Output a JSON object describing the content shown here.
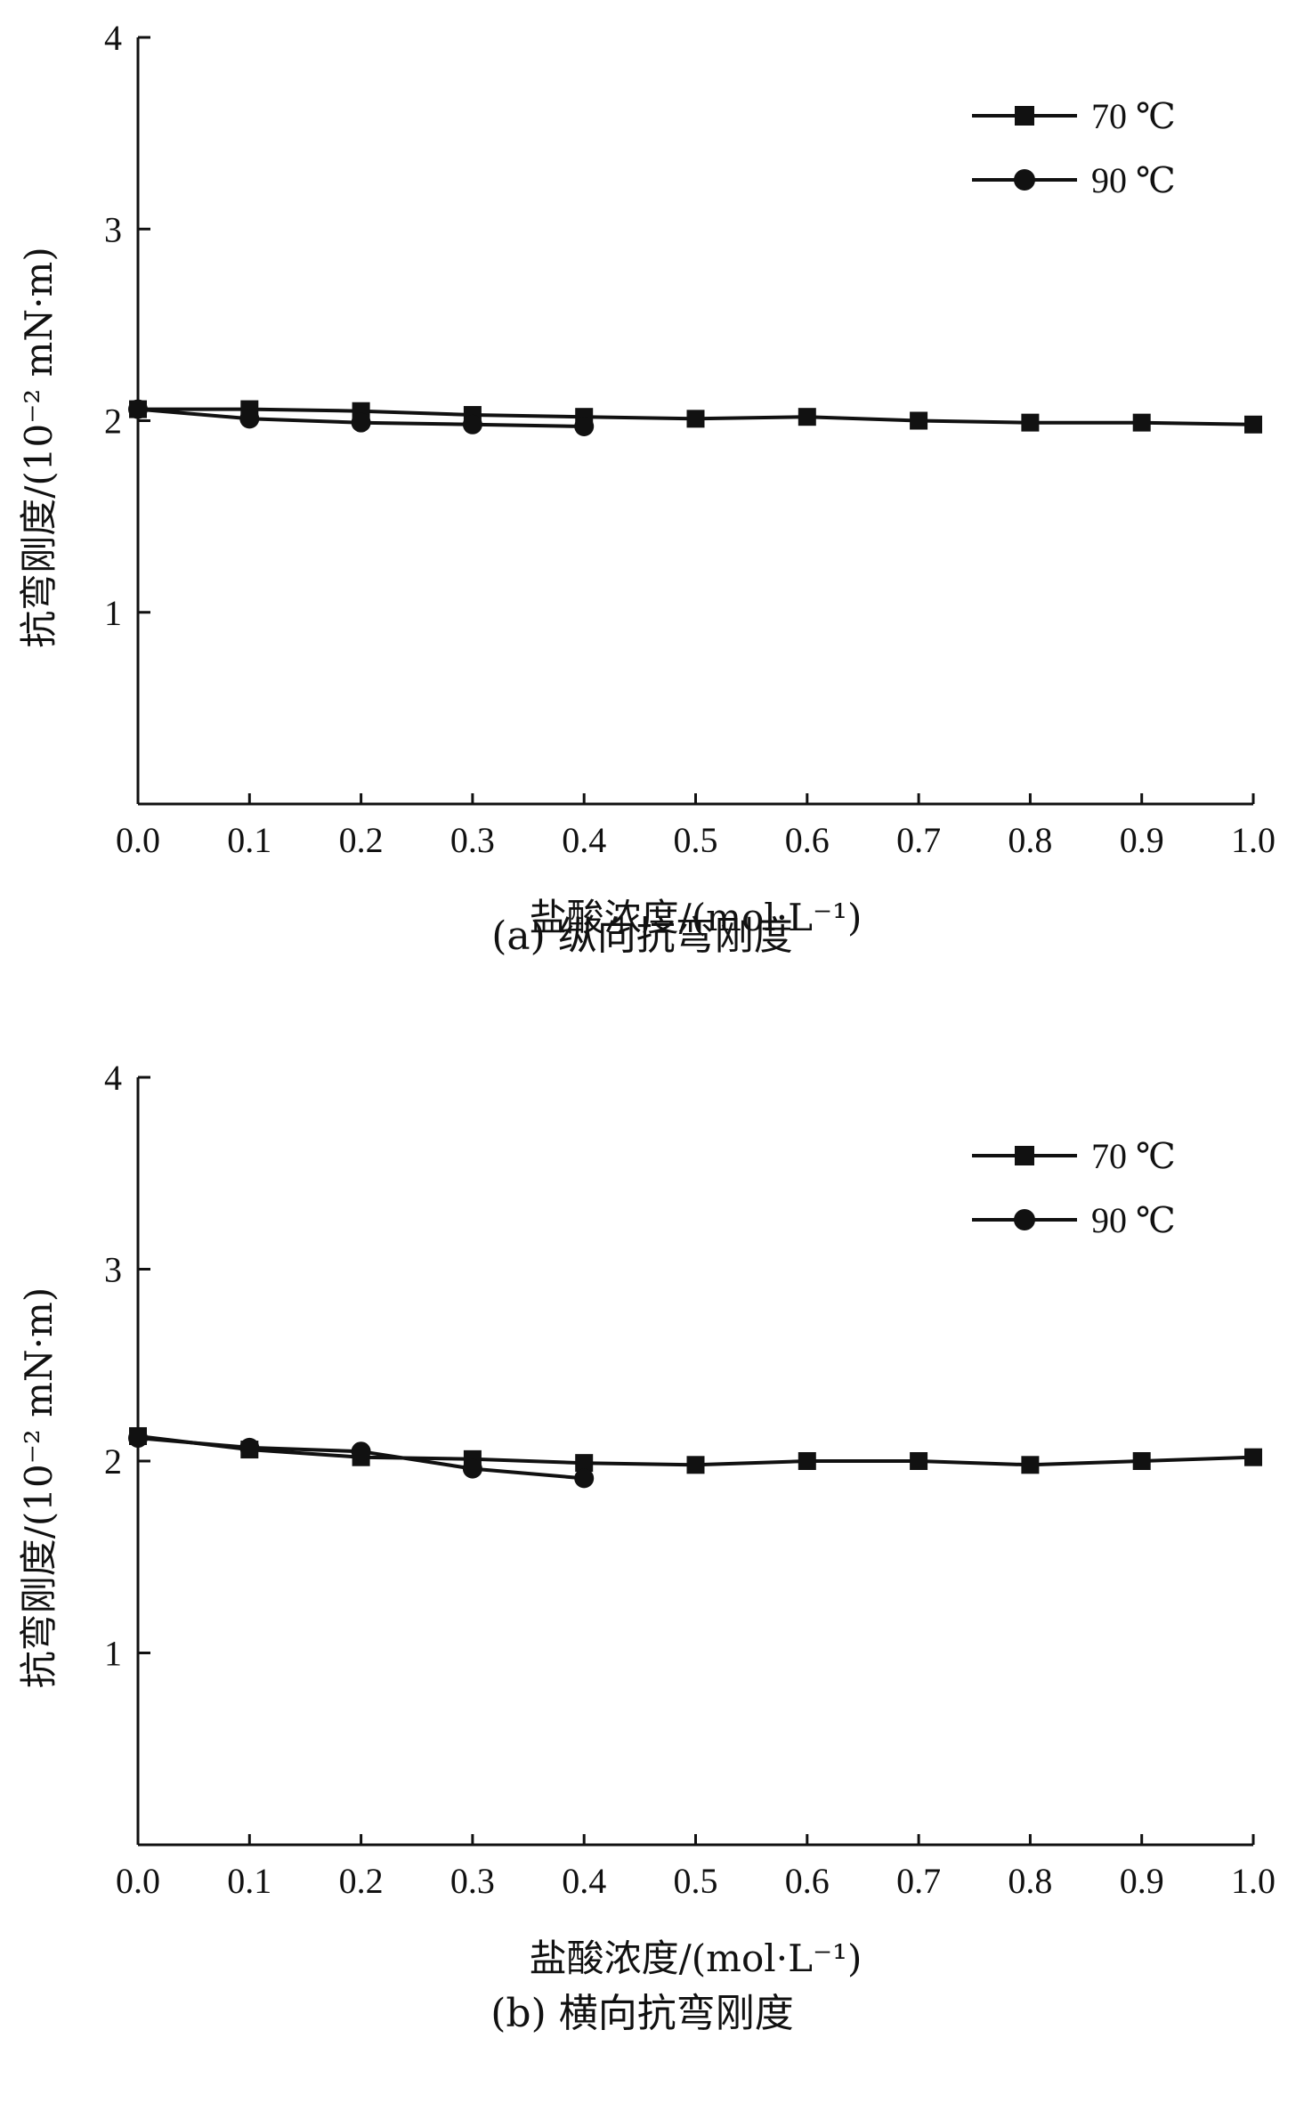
{
  "chart_data": [
    {
      "type": "line",
      "caption": "(a)  纵向抗弯刚度",
      "xlabel": "盐酸浓度/(mol·L⁻¹)",
      "ylabel": "抗弯刚度/(10⁻² mN·m)",
      "xlim": [
        0,
        1.0
      ],
      "ylim": [
        0,
        4
      ],
      "x_ticks": [
        "0.0",
        "0.1",
        "0.2",
        "0.3",
        "0.4",
        "0.5",
        "0.6",
        "0.7",
        "0.8",
        "0.9",
        "1.0"
      ],
      "y_ticks": [
        "1",
        "2",
        "3",
        "4"
      ],
      "legend_position": "top-right",
      "series": [
        {
          "name": "70 ℃",
          "marker": "square",
          "x": [
            0.0,
            0.1,
            0.2,
            0.3,
            0.4,
            0.5,
            0.6,
            0.7,
            0.8,
            0.9,
            1.0
          ],
          "y": [
            2.06,
            2.06,
            2.05,
            2.03,
            2.02,
            2.01,
            2.02,
            2.0,
            1.99,
            1.99,
            1.98
          ]
        },
        {
          "name": "90 ℃",
          "marker": "circle",
          "x": [
            0.0,
            0.1,
            0.2,
            0.3,
            0.4
          ],
          "y": [
            2.06,
            2.01,
            1.99,
            1.98,
            1.97
          ]
        }
      ]
    },
    {
      "type": "line",
      "caption": "(b)  横向抗弯刚度",
      "xlabel": "盐酸浓度/(mol·L⁻¹)",
      "ylabel": "抗弯刚度/(10⁻² mN·m)",
      "xlim": [
        0,
        1.0
      ],
      "ylim": [
        0,
        4
      ],
      "x_ticks": [
        "0.0",
        "0.1",
        "0.2",
        "0.3",
        "0.4",
        "0.5",
        "0.6",
        "0.7",
        "0.8",
        "0.9",
        "1.0"
      ],
      "y_ticks": [
        "1",
        "2",
        "3",
        "4"
      ],
      "legend_position": "top-right",
      "series": [
        {
          "name": "70 ℃",
          "marker": "square",
          "x": [
            0.0,
            0.1,
            0.2,
            0.3,
            0.4,
            0.5,
            0.6,
            0.7,
            0.8,
            0.9,
            1.0
          ],
          "y": [
            2.13,
            2.06,
            2.02,
            2.01,
            1.99,
            1.98,
            2.0,
            2.0,
            1.98,
            2.0,
            2.02
          ]
        },
        {
          "name": "90 ℃",
          "marker": "circle",
          "x": [
            0.0,
            0.1,
            0.2,
            0.3,
            0.4
          ],
          "y": [
            2.12,
            2.07,
            2.05,
            1.96,
            1.91
          ]
        }
      ]
    }
  ]
}
